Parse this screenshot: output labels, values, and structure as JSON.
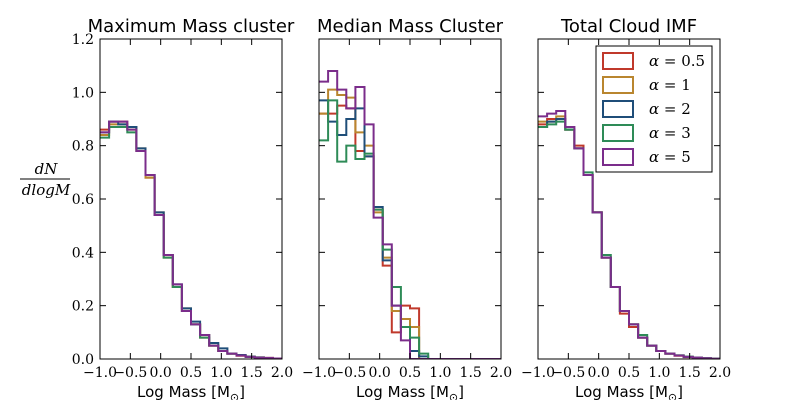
{
  "chart_data": [
    {
      "type": "histogram",
      "title": "Maximum Mass cluster",
      "xlabel": "Log Mass [M",
      "xlabel_sub": "⊙",
      "xlabel_close": "]",
      "ylabel_num": "dN",
      "ylabel_den": "dlogM",
      "xlim": [
        -1.0,
        2.0
      ],
      "ylim": [
        0.0,
        1.2
      ],
      "bin_width": 0.15,
      "xticks": [
        "−1.0",
        "−0.5",
        "0.0",
        "0.5",
        "1.0",
        "1.5",
        "2.0"
      ],
      "yticks": [
        "0.0",
        "0.2",
        "0.4",
        "0.6",
        "0.8",
        "1.0",
        "1.2"
      ],
      "series": [
        {
          "name": "alpha=0.5",
          "values": [
            0.86,
            0.89,
            0.89,
            0.87,
            0.78,
            0.68,
            0.54,
            0.39,
            0.27,
            0.18,
            0.13,
            0.08,
            0.05,
            0.03,
            0.02,
            0.012,
            0.008,
            0.005,
            0.003,
            0.001
          ]
        },
        {
          "name": "alpha=1",
          "values": [
            0.84,
            0.88,
            0.88,
            0.86,
            0.79,
            0.68,
            0.55,
            0.38,
            0.27,
            0.19,
            0.13,
            0.09,
            0.05,
            0.03,
            0.02,
            0.014,
            0.009,
            0.006,
            0.004,
            0.002
          ]
        },
        {
          "name": "alpha=2",
          "values": [
            0.85,
            0.89,
            0.88,
            0.87,
            0.79,
            0.69,
            0.55,
            0.39,
            0.28,
            0.19,
            0.14,
            0.09,
            0.06,
            0.04,
            0.02,
            0.015,
            0.009,
            0.006,
            0.003,
            0.002
          ]
        },
        {
          "name": "alpha=3",
          "values": [
            0.83,
            0.87,
            0.87,
            0.85,
            0.78,
            0.69,
            0.54,
            0.38,
            0.27,
            0.18,
            0.13,
            0.08,
            0.05,
            0.03,
            0.02,
            0.013,
            0.008,
            0.005,
            0.003,
            0.002
          ]
        },
        {
          "name": "alpha=5",
          "values": [
            0.85,
            0.89,
            0.89,
            0.86,
            0.78,
            0.69,
            0.54,
            0.39,
            0.28,
            0.18,
            0.13,
            0.09,
            0.05,
            0.03,
            0.02,
            0.013,
            0.008,
            0.005,
            0.004,
            0.002
          ]
        }
      ]
    },
    {
      "type": "histogram",
      "title": "Median Mass Cluster",
      "xlabel": "Log Mass [M",
      "xlabel_sub": "⊙",
      "xlabel_close": "]",
      "xlim": [
        -1.0,
        2.0
      ],
      "ylim": [
        0.0,
        1.2
      ],
      "bin_width": 0.15,
      "xticks": [
        "−1.0",
        "−0.5",
        "0.0",
        "0.5",
        "1.0",
        "1.5",
        "2.0"
      ],
      "yticks": [],
      "series": [
        {
          "name": "alpha=0.5",
          "values": [
            0.92,
            0.92,
            0.95,
            0.94,
            0.78,
            0.76,
            0.56,
            0.35,
            0.1,
            0.2,
            0.19,
            0.0,
            0.0,
            0.0,
            0.0,
            0.0,
            0.0,
            0.0,
            0.0,
            0.0
          ]
        },
        {
          "name": "alpha=1",
          "values": [
            0.92,
            1.01,
            0.99,
            0.98,
            0.85,
            0.8,
            0.55,
            0.38,
            0.18,
            0.15,
            0.12,
            0.0,
            0.0,
            0.0,
            0.0,
            0.0,
            0.0,
            0.0,
            0.0,
            0.0
          ]
        },
        {
          "name": "alpha=2",
          "values": [
            0.97,
            0.89,
            0.84,
            0.9,
            0.94,
            0.76,
            0.57,
            0.37,
            0.2,
            0.12,
            0.03,
            0.01,
            0.0,
            0.0,
            0.0,
            0.0,
            0.0,
            0.0,
            0.0,
            0.0
          ]
        },
        {
          "name": "alpha=3",
          "values": [
            0.82,
            0.97,
            0.74,
            0.8,
            0.75,
            0.77,
            0.56,
            0.41,
            0.27,
            0.12,
            0.08,
            0.02,
            0.0,
            0.0,
            0.0,
            0.0,
            0.0,
            0.0,
            0.0,
            0.0
          ]
        },
        {
          "name": "alpha=5",
          "values": [
            1.04,
            1.08,
            1.01,
            0.94,
            1.02,
            0.88,
            0.53,
            0.43,
            0.2,
            0.07,
            0.0,
            0.0,
            0.0,
            0.0,
            0.0,
            0.0,
            0.0,
            0.0,
            0.0,
            0.0
          ]
        }
      ]
    },
    {
      "type": "histogram",
      "title": "Total Cloud IMF",
      "xlabel": "Log Mass [M",
      "xlabel_sub": "⊙",
      "xlabel_close": "]",
      "xlim": [
        -1.0,
        2.0
      ],
      "ylim": [
        0.0,
        1.2
      ],
      "bin_width": 0.15,
      "xticks": [
        "−1.0",
        "−0.5",
        "0.0",
        "0.5",
        "1.0",
        "1.5",
        "2.0"
      ],
      "yticks": [],
      "legend_position": "top-right",
      "series": [
        {
          "name": "alpha=0.5",
          "values": [
            0.88,
            0.9,
            0.9,
            0.86,
            0.8,
            0.69,
            0.55,
            0.38,
            0.27,
            0.17,
            0.12,
            0.08,
            0.05,
            0.03,
            0.02,
            0.012,
            0.007,
            0.004,
            0.002,
            0.001
          ]
        },
        {
          "name": "alpha=1",
          "values": [
            0.89,
            0.89,
            0.91,
            0.86,
            0.79,
            0.69,
            0.55,
            0.38,
            0.27,
            0.18,
            0.13,
            0.08,
            0.05,
            0.03,
            0.02,
            0.013,
            0.008,
            0.005,
            0.003,
            0.001
          ]
        },
        {
          "name": "alpha=2",
          "values": [
            0.87,
            0.89,
            0.9,
            0.86,
            0.79,
            0.69,
            0.55,
            0.38,
            0.27,
            0.18,
            0.13,
            0.08,
            0.05,
            0.03,
            0.02,
            0.013,
            0.008,
            0.005,
            0.003,
            0.001
          ]
        },
        {
          "name": "alpha=3",
          "values": [
            0.87,
            0.88,
            0.89,
            0.86,
            0.79,
            0.7,
            0.55,
            0.39,
            0.27,
            0.18,
            0.13,
            0.09,
            0.05,
            0.03,
            0.02,
            0.014,
            0.009,
            0.005,
            0.003,
            0.001
          ]
        },
        {
          "name": "alpha=5",
          "values": [
            0.91,
            0.92,
            0.93,
            0.87,
            0.79,
            0.69,
            0.55,
            0.38,
            0.27,
            0.18,
            0.13,
            0.08,
            0.05,
            0.03,
            0.02,
            0.013,
            0.008,
            0.005,
            0.003,
            0.001
          ]
        }
      ]
    }
  ],
  "legend": {
    "entries": [
      {
        "prefix": "α = ",
        "value": "0.5"
      },
      {
        "prefix": "α = ",
        "value": "1"
      },
      {
        "prefix": "α = ",
        "value": "2"
      },
      {
        "prefix": "α = ",
        "value": "3"
      },
      {
        "prefix": "α = ",
        "value": "5"
      }
    ]
  },
  "colors": {
    "alpha=0.5": "#c0392b",
    "alpha=1": "#b9862f",
    "alpha=2": "#1f4e79",
    "alpha=3": "#2e8b57",
    "alpha=5": "#7b2d8b"
  }
}
